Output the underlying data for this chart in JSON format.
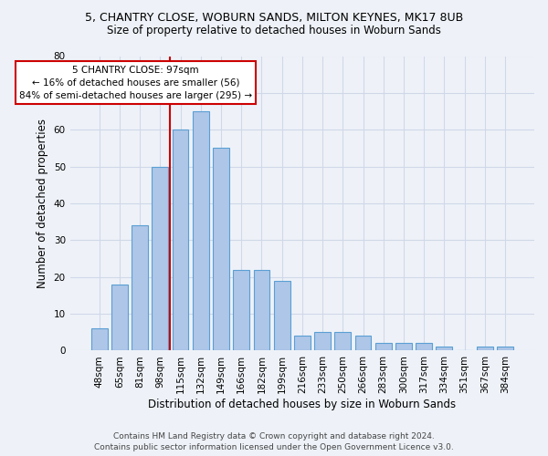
{
  "title_line1": "5, CHANTRY CLOSE, WOBURN SANDS, MILTON KEYNES, MK17 8UB",
  "title_line2": "Size of property relative to detached houses in Woburn Sands",
  "xlabel": "Distribution of detached houses by size in Woburn Sands",
  "ylabel": "Number of detached properties",
  "footer_line1": "Contains HM Land Registry data © Crown copyright and database right 2024.",
  "footer_line2": "Contains public sector information licensed under the Open Government Licence v3.0.",
  "bins": [
    "48sqm",
    "65sqm",
    "81sqm",
    "98sqm",
    "115sqm",
    "132sqm",
    "149sqm",
    "166sqm",
    "182sqm",
    "199sqm",
    "216sqm",
    "233sqm",
    "250sqm",
    "266sqm",
    "283sqm",
    "300sqm",
    "317sqm",
    "334sqm",
    "351sqm",
    "367sqm",
    "384sqm"
  ],
  "counts": [
    6,
    18,
    34,
    50,
    60,
    65,
    55,
    22,
    22,
    19,
    4,
    5,
    5,
    4,
    2,
    2,
    2,
    1,
    0,
    1,
    1
  ],
  "bar_color": "#aec6e8",
  "bar_edge_color": "#5a9fd4",
  "vline_color": "#cc0000",
  "vline_position": 3.5,
  "annotation_text": "5 CHANTRY CLOSE: 97sqm\n← 16% of detached houses are smaller (56)\n84% of semi-detached houses are larger (295) →",
  "annotation_box_color": "#ffffff",
  "annotation_box_edge_color": "#cc0000",
  "ylim": [
    0,
    80
  ],
  "yticks": [
    0,
    10,
    20,
    30,
    40,
    50,
    60,
    70,
    80
  ],
  "grid_color": "#d0d8e8",
  "background_color": "#eef2f8",
  "plot_bg_color": "#eef2f8",
  "title1_fontsize": 9,
  "title2_fontsize": 8.5,
  "xlabel_fontsize": 8.5,
  "ylabel_fontsize": 8.5,
  "footer_fontsize": 6.5,
  "tick_fontsize": 7.5
}
